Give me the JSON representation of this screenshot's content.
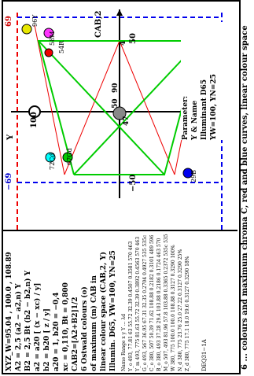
{
  "left_panel": {
    "lines": [
      "XYZ_W=95.04 , 100.0 , 108.89",
      "A2 = 2,5 (a2 − a2,n) Y",
      "B2 = 2,5 Bt (b2 − b2,n) Y",
      "a2 = a20 [ (x − xc) / y]",
      "b2 = b20 [ z / y]",
      "a20 = 1, b20 = −0,4",
      "xc = 0,110, Bt = 0,800",
      "CAB2=[A2+B2]1/2",
      "6 Ostwald colours (o)",
      "of maximum (m) CAB in",
      "linear colour space (CAB,2, Y)",
      "Illumin. D65, YW=100, YN=25"
    ],
    "table_header": "Name  Range  x   y   Y   ... λd",
    "table_rows": [
      "Y_o 493, 77.81 63 55.72 32.39  0.4507 0.3581  570  463",
      "Y_m 493, 775 81.63 55.72 32.39  0.3892 0.4563  570  463",
      "G_o 493, 567 36.95 67.31 32.35  0.2704 0.4927  535  535c",
      "C_o 380, 507 50.39 71.62  108.88 0.2182 0.3101  489  596",
      "B_o 380, 493 37.28 29.4  103.88 0.2186 0.1724  463  570",
      "M_o 507, 493 81.96 57.8  103.88 0.3365 0.2372  535c 535",
      "W 380, 775 100.0 100.0  108.88 0.3127 0.3290  100%",
      "N_d 380, 775 23.76 25.0  27.22 0.3127 0.3290  25%",
      "Z_d 380, 775 17.1 18.0  19.6 0.3127 0.3290  18%"
    ],
    "footer_code": "DEQ31−1A"
  },
  "chart": {
    "axis_title_y": "Y",
    "axis_title_cab": "CAB,2",
    "tick_100": "100",
    "tick_50_right": "50",
    "tick_50_center": "50",
    "tick_minus50": "−50",
    "tick_47": "47",
    "tick_4": "4",
    "tick_90": "90",
    "left_blue": "−69",
    "right_red": "69",
    "labels": [
      "96Y",
      "58M",
      "54R",
      "72Cd",
      "67Gd",
      "29B"
    ],
    "parameter_title": "Parameter:",
    "parameter_line1": "Y & Name",
    "parameter_line2": "Illuminant D65",
    "parameter_line3": "YW=100, YN=25"
  },
  "bottom_caption": "6 ... colours and maximum chroma C, red and blue curves, linear colour space",
  "colors": {
    "green": "#00cc00",
    "red": "#ee0000",
    "blue": "#0000ee",
    "yellow": "#e8e800",
    "magenta": "#ff33ff",
    "cyan": "#00ffff",
    "gray": "#888888"
  }
}
